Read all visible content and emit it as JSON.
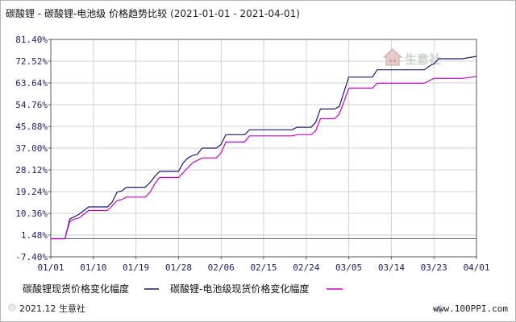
{
  "header": {
    "title": "碳酸锂 - 碳酸锂-电池级 价格趋势比较",
    "date_range": "(2021-01-01 - 2021-04-01)"
  },
  "watermark": {
    "text": "生意社"
  },
  "footer": {
    "copyright": "2021.12 生意社",
    "url": "www.100PPI.com"
  },
  "colors": {
    "series1": "#1a1a6e",
    "series2": "#cc00cc",
    "grid": "#d2d2d2",
    "axis": "#555555",
    "tick_label": "#1d1d6a",
    "baseline": "#666666"
  },
  "chart_data": {
    "type": "line",
    "title": "碳酸锂 - 碳酸锂-电池级 价格趋势比较",
    "xlabel": "",
    "ylabel": "",
    "x_tick_labels": [
      "01/01",
      "01/10",
      "01/19",
      "01/28",
      "02/06",
      "02/15",
      "02/24",
      "03/05",
      "03/14",
      "03/23",
      "04/01"
    ],
    "y_tick_labels": [
      "81.40%",
      "72.52%",
      "63.64%",
      "54.76%",
      "45.88%",
      "37.00%",
      "28.12%",
      "19.24%",
      "10.36%",
      "1.48%",
      "-7.40%"
    ],
    "ylim": [
      -7.4,
      81.4
    ],
    "xlim": [
      0,
      90
    ],
    "grid": true,
    "legend_position": "bottom",
    "series": [
      {
        "name": "碳酸锂现货价格变化幅度",
        "color": "#1a1a6e",
        "points": [
          [
            0,
            0
          ],
          [
            3,
            0
          ],
          [
            4,
            8
          ],
          [
            5,
            9
          ],
          [
            6,
            10
          ],
          [
            7,
            11.5
          ],
          [
            8,
            13
          ],
          [
            12,
            13
          ],
          [
            13,
            15
          ],
          [
            14,
            19
          ],
          [
            15,
            19.5
          ],
          [
            16,
            21
          ],
          [
            20,
            21
          ],
          [
            21,
            23
          ],
          [
            22,
            25.5
          ],
          [
            23,
            27.5
          ],
          [
            27,
            27.5
          ],
          [
            28,
            31
          ],
          [
            29,
            33
          ],
          [
            30,
            34
          ],
          [
            31,
            34.5
          ],
          [
            32,
            37
          ],
          [
            35,
            37
          ],
          [
            36,
            38.5
          ],
          [
            37,
            42.5
          ],
          [
            41,
            42.5
          ],
          [
            42,
            44.5
          ],
          [
            51,
            44.5
          ],
          [
            52,
            45.5
          ],
          [
            55,
            45.5
          ],
          [
            56,
            47.5
          ],
          [
            57,
            53
          ],
          [
            60,
            53
          ],
          [
            61,
            54
          ],
          [
            62,
            60
          ],
          [
            63,
            66
          ],
          [
            68,
            66
          ],
          [
            69,
            69
          ],
          [
            79,
            69
          ],
          [
            80,
            70.5
          ],
          [
            81,
            71.5
          ],
          [
            82,
            73.5
          ],
          [
            87,
            73.5
          ],
          [
            90,
            74.5
          ]
        ]
      },
      {
        "name": "碳酸锂-电池级现货价格变化幅度",
        "color": "#cc00cc",
        "points": [
          [
            0,
            0
          ],
          [
            3,
            0
          ],
          [
            4,
            7
          ],
          [
            5,
            8
          ],
          [
            6,
            8.5
          ],
          [
            7,
            10
          ],
          [
            8,
            11.5
          ],
          [
            12,
            11.5
          ],
          [
            13,
            13.5
          ],
          [
            14,
            15.5
          ],
          [
            15,
            16
          ],
          [
            16,
            17
          ],
          [
            20,
            17
          ],
          [
            21,
            19
          ],
          [
            22,
            22.5
          ],
          [
            23,
            25
          ],
          [
            27,
            25
          ],
          [
            28,
            27
          ],
          [
            29,
            29
          ],
          [
            30,
            31
          ],
          [
            31,
            32
          ],
          [
            32,
            33
          ],
          [
            35,
            33
          ],
          [
            36,
            35
          ],
          [
            37,
            39.5
          ],
          [
            41,
            39.5
          ],
          [
            42,
            42
          ],
          [
            51,
            42
          ],
          [
            52,
            42.5
          ],
          [
            55,
            42.5
          ],
          [
            56,
            44
          ],
          [
            57,
            49
          ],
          [
            60,
            49
          ],
          [
            61,
            51
          ],
          [
            62,
            56
          ],
          [
            63,
            61.5
          ],
          [
            68,
            61.5
          ],
          [
            69,
            63.5
          ],
          [
            79,
            63.5
          ],
          [
            80,
            64.5
          ],
          [
            81,
            65.5
          ],
          [
            87,
            65.5
          ],
          [
            90,
            66.2
          ]
        ]
      }
    ]
  }
}
